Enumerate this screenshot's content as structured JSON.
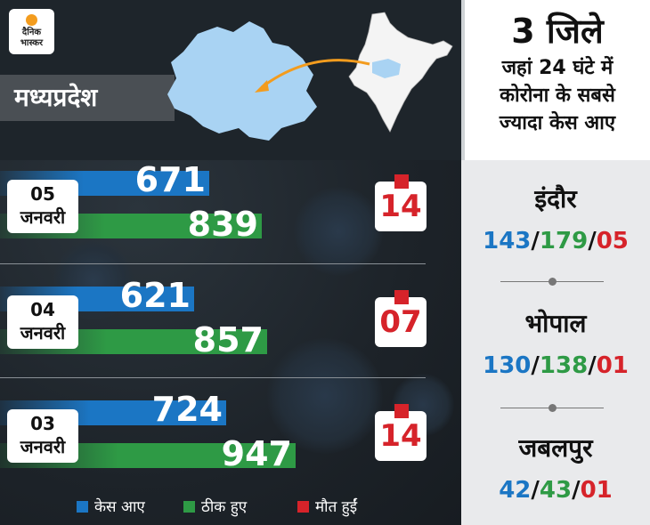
{
  "logo": {
    "line1": "दैनिक",
    "line2": "भास्कर"
  },
  "state": "मध्यप्रदेश",
  "colors": {
    "cases": "#1b76c4",
    "recovered": "#2e9a45",
    "deaths": "#d6232a"
  },
  "legend": [
    "केस आए",
    "ठीक हुए",
    "मौत हुईं"
  ],
  "side_panel": {
    "big": "3 जिले",
    "lines": [
      "जहां 24 घंटे में",
      "कोरोना के सबसे",
      "ज्यादा केस आए"
    ],
    "districts": [
      {
        "name": "इंदौर",
        "cases": "143",
        "recovered": "179",
        "deaths": "05"
      },
      {
        "name": "भोपाल",
        "cases": "130",
        "recovered": "138",
        "deaths": "01"
      },
      {
        "name": "जबलपुर",
        "cases": "42",
        "recovered": "43",
        "deaths": "01"
      }
    ]
  },
  "chart_data": {
    "type": "bar",
    "categories": [
      {
        "day": "05",
        "month": "जनवरी"
      },
      {
        "day": "04",
        "month": "जनवरी"
      },
      {
        "day": "03",
        "month": "जनवरी"
      }
    ],
    "series": [
      {
        "name": "केस आए",
        "values": [
          671,
          621,
          724
        ]
      },
      {
        "name": "ठीक हुए",
        "values": [
          839,
          857,
          947
        ]
      },
      {
        "name": "मौत हुईं",
        "values": [
          "14",
          "07",
          "14"
        ]
      }
    ]
  }
}
